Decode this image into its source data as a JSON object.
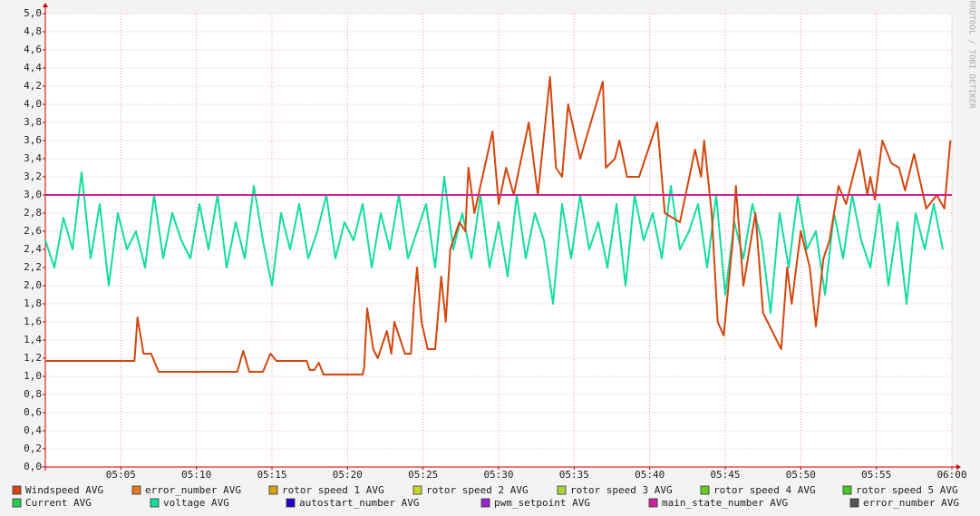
{
  "chart_data": {
    "type": "line",
    "watermark": "RRDTOOL / TOBI OETIKER",
    "xlim": [
      0,
      60
    ],
    "ylim": [
      0,
      5
    ],
    "grid": true,
    "xticks": [
      {
        "value": 5,
        "label": "05:05"
      },
      {
        "value": 10,
        "label": "05:10"
      },
      {
        "value": 15,
        "label": "05:15"
      },
      {
        "value": 20,
        "label": "05:20"
      },
      {
        "value": 25,
        "label": "05:25"
      },
      {
        "value": 30,
        "label": "05:30"
      },
      {
        "value": 35,
        "label": "05:35"
      },
      {
        "value": 40,
        "label": "05:40"
      },
      {
        "value": 45,
        "label": "05:45"
      },
      {
        "value": 50,
        "label": "05:50"
      },
      {
        "value": 55,
        "label": "05:55"
      },
      {
        "value": 60,
        "label": "06:00"
      }
    ],
    "yticks": [
      {
        "value": 0,
        "label": "0,0"
      },
      {
        "value": 0.2,
        "label": "0,2"
      },
      {
        "value": 0.4,
        "label": "0,4"
      },
      {
        "value": 0.6,
        "label": "0,6"
      },
      {
        "value": 0.8,
        "label": "0,8"
      },
      {
        "value": 1.0,
        "label": "1,0"
      },
      {
        "value": 1.2,
        "label": "1,2"
      },
      {
        "value": 1.4,
        "label": "1,4"
      },
      {
        "value": 1.6,
        "label": "1,6"
      },
      {
        "value": 1.8,
        "label": "1,8"
      },
      {
        "value": 2.0,
        "label": "2,0"
      },
      {
        "value": 2.2,
        "label": "2,2"
      },
      {
        "value": 2.4,
        "label": "2,4"
      },
      {
        "value": 2.6,
        "label": "2,6"
      },
      {
        "value": 2.8,
        "label": "2,8"
      },
      {
        "value": 3.0,
        "label": "3,0"
      },
      {
        "value": 3.2,
        "label": "3,2"
      },
      {
        "value": 3.4,
        "label": "3,4"
      },
      {
        "value": 3.6,
        "label": "3,6"
      },
      {
        "value": 3.8,
        "label": "3,8"
      },
      {
        "value": 4.0,
        "label": "4,0"
      },
      {
        "value": 4.2,
        "label": "4,2"
      },
      {
        "value": 4.4,
        "label": "4,4"
      },
      {
        "value": 4.6,
        "label": "4,6"
      },
      {
        "value": 4.8,
        "label": "4,8"
      },
      {
        "value": 5.0,
        "label": "5,0"
      }
    ],
    "series": [
      {
        "name": "Windspeed AVG",
        "color": "#d2470e",
        "x": [
          0,
          5.9,
          6.1,
          6.5,
          7,
          7.5,
          12.7,
          13.1,
          13.5,
          14.4,
          14.7,
          14.9,
          15.3,
          17.3,
          17.5,
          17.8,
          18.1,
          18.4,
          21,
          21.1,
          21.3,
          21.7,
          22,
          22.6,
          22.9,
          23.1,
          23.5,
          23.8,
          24.2,
          24.4,
          24.6,
          24.9,
          25.3,
          25.8,
          26.2,
          26.5,
          26.8,
          27.4,
          27.8,
          28,
          28.4,
          29.6,
          30,
          30.5,
          31,
          32,
          32.6,
          33.4,
          33.8,
          34.2,
          34.6,
          35.4,
          36.9,
          37.1,
          37.7,
          38,
          38.5,
          39.3,
          40.5,
          41,
          42,
          43,
          43.4,
          43.6,
          44.1,
          44.5,
          44.9,
          45.5,
          45.7,
          46.2,
          47,
          47.5,
          48.1,
          48.7,
          49.1,
          49.4,
          50,
          50.6,
          51,
          51.5,
          51.9,
          52.5,
          53,
          53.9,
          54.4,
          54.6,
          54.9,
          55.4,
          56,
          56.5,
          56.9,
          57.5,
          58.3,
          59,
          59.5,
          59.9
        ],
        "values": [
          1.17,
          1.17,
          1.65,
          1.25,
          1.25,
          1.05,
          1.05,
          1.28,
          1.05,
          1.05,
          1.17,
          1.25,
          1.17,
          1.17,
          1.07,
          1.07,
          1.15,
          1.02,
          1.02,
          1.1,
          1.75,
          1.3,
          1.2,
          1.5,
          1.25,
          1.6,
          1.4,
          1.25,
          1.25,
          1.8,
          2.2,
          1.6,
          1.3,
          1.3,
          2.1,
          1.6,
          2.4,
          2.7,
          2.6,
          3.3,
          2.8,
          3.7,
          2.9,
          3.3,
          3.0,
          3.8,
          3.0,
          4.3,
          3.3,
          3.2,
          4.0,
          3.4,
          4.25,
          3.3,
          3.4,
          3.6,
          3.2,
          3.2,
          3.8,
          2.8,
          2.7,
          3.5,
          3.2,
          3.6,
          2.8,
          1.6,
          1.45,
          2.5,
          3.1,
          2.0,
          2.8,
          1.7,
          1.5,
          1.3,
          2.2,
          1.8,
          2.6,
          2.2,
          1.55,
          2.3,
          2.5,
          3.1,
          2.9,
          3.5,
          3.0,
          3.2,
          2.95,
          3.6,
          3.35,
          3.3,
          3.05,
          3.45,
          2.85,
          3.0,
          2.85,
          3.6
        ]
      },
      {
        "name": "error_number AVG",
        "color": "#e8781e",
        "x": [],
        "values": []
      },
      {
        "name": "rotor speed 1 AVG",
        "color": "#d4a017",
        "x": [],
        "values": []
      },
      {
        "name": "rotor speed 2 AVG",
        "color": "#c8d42a",
        "x": [],
        "values": []
      },
      {
        "name": "rotor speed 3 AVG",
        "color": "#a8d43a",
        "x": [],
        "values": []
      },
      {
        "name": "rotor speed 4 AVG",
        "color": "#66cc22",
        "x": [],
        "values": []
      },
      {
        "name": "rotor speed 5 AVG",
        "color": "#44cc22",
        "x": [],
        "values": []
      },
      {
        "name": "Current AVG",
        "color": "#22cc55",
        "x": [],
        "values": []
      },
      {
        "name": "voltage AVG",
        "color": "#11dda0",
        "x": [
          0,
          0.6,
          1.2,
          1.8,
          2.4,
          3,
          3.6,
          4.2,
          4.8,
          5.4,
          6,
          6.6,
          7.2,
          7.8,
          8.4,
          9,
          9.6,
          10.2,
          10.8,
          11.4,
          12,
          12.6,
          13.2,
          13.8,
          14.4,
          15,
          15.6,
          16.2,
          16.8,
          17.4,
          18,
          18.6,
          19.2,
          19.8,
          20.4,
          21,
          21.6,
          22.2,
          22.8,
          23.4,
          24,
          24.6,
          25.2,
          25.8,
          26.4,
          27,
          27.6,
          28.2,
          28.8,
          29.4,
          30,
          30.6,
          31.2,
          31.8,
          32.4,
          33,
          33.6,
          34.2,
          34.8,
          35.4,
          36,
          36.6,
          37.2,
          37.8,
          38.4,
          39,
          39.6,
          40.2,
          40.8,
          41.4,
          42,
          42.6,
          43.2,
          43.8,
          44.4,
          45,
          45.6,
          46.2,
          46.8,
          47.4,
          48,
          48.6,
          49.2,
          49.8,
          50.4,
          51,
          51.6,
          52.2,
          52.8,
          53.4,
          54,
          54.6,
          55.2,
          55.8,
          56.4,
          57,
          57.6,
          58.2,
          58.8,
          59.4
        ],
        "values": [
          2.5,
          2.2,
          2.75,
          2.4,
          3.25,
          2.3,
          2.9,
          2.0,
          2.8,
          2.4,
          2.6,
          2.2,
          3.0,
          2.3,
          2.8,
          2.5,
          2.3,
          2.9,
          2.4,
          3.0,
          2.2,
          2.7,
          2.3,
          3.1,
          2.5,
          2.0,
          2.8,
          2.4,
          2.9,
          2.3,
          2.6,
          3.0,
          2.3,
          2.7,
          2.5,
          2.9,
          2.2,
          2.8,
          2.4,
          3.0,
          2.3,
          2.6,
          2.9,
          2.2,
          3.2,
          2.4,
          2.8,
          2.3,
          3.0,
          2.2,
          2.7,
          2.1,
          3.0,
          2.3,
          2.8,
          2.5,
          1.8,
          2.9,
          2.3,
          3.0,
          2.4,
          2.7,
          2.2,
          2.9,
          2.0,
          3.0,
          2.5,
          2.8,
          2.3,
          3.1,
          2.4,
          2.6,
          2.9,
          2.2,
          3.0,
          1.9,
          2.7,
          2.3,
          2.9,
          2.5,
          1.7,
          2.8,
          2.2,
          3.0,
          2.4,
          2.6,
          1.9,
          2.8,
          2.3,
          3.0,
          2.5,
          2.2,
          2.9,
          2.0,
          2.7,
          1.8,
          2.8,
          2.4,
          2.9,
          2.4
        ]
      },
      {
        "name": "autostart_number AVG",
        "color": "#2200cc",
        "x": [],
        "values": []
      },
      {
        "name": "pwm_setpoint AVG",
        "color": "#9922cc",
        "x": [],
        "values": []
      },
      {
        "name": "main_state_number AVG",
        "color": "#cc2299",
        "x": [
          0,
          60
        ],
        "values": [
          3.0,
          3.0
        ]
      },
      {
        "name": "error_number AVG",
        "color": "#555555",
        "x": [],
        "values": []
      }
    ]
  }
}
